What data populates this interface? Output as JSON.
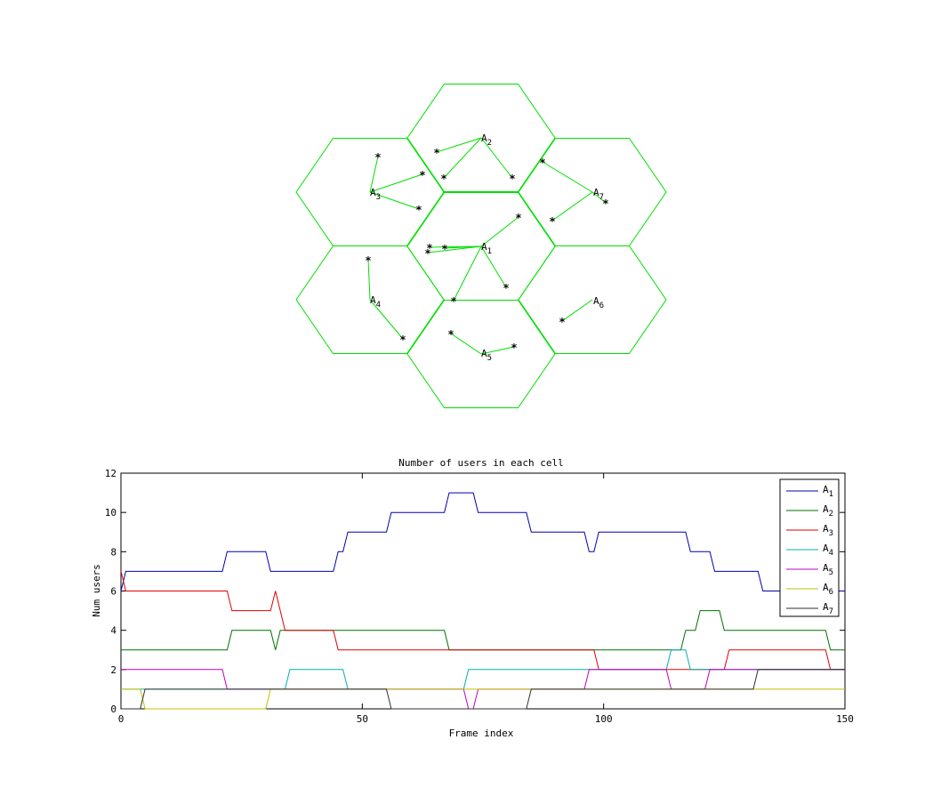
{
  "hex_map": {
    "cell_color": "#00e000",
    "cells": [
      {
        "id": "A1",
        "base": "A",
        "sub": "1"
      },
      {
        "id": "A2",
        "base": "A",
        "sub": "2"
      },
      {
        "id": "A3",
        "base": "A",
        "sub": "3"
      },
      {
        "id": "A4",
        "base": "A",
        "sub": "4"
      },
      {
        "id": "A5",
        "base": "A",
        "sub": "5"
      },
      {
        "id": "A6",
        "base": "A",
        "sub": "6"
      },
      {
        "id": "A7",
        "base": "A",
        "sub": "7"
      }
    ],
    "user_marker": "*"
  },
  "chart_data": {
    "type": "line",
    "title": "Number of users in each cell",
    "xlabel": "Frame index",
    "ylabel": "Num users",
    "xlim": [
      0,
      150
    ],
    "ylim": [
      0,
      12
    ],
    "xticks": [
      0,
      50,
      100,
      150
    ],
    "yticks": [
      0,
      2,
      4,
      6,
      8,
      10,
      12
    ],
    "grid": false,
    "legend_position": "top-right",
    "series": [
      {
        "name": "A1",
        "base": "A",
        "sub": "1",
        "color": "#0000b0",
        "points": [
          [
            0,
            6
          ],
          [
            1,
            7
          ],
          [
            21,
            7
          ],
          [
            22,
            8
          ],
          [
            30,
            8
          ],
          [
            31,
            7
          ],
          [
            44,
            7
          ],
          [
            45,
            8
          ],
          [
            46,
            8
          ],
          [
            47,
            9
          ],
          [
            55,
            9
          ],
          [
            56,
            10
          ],
          [
            67,
            10
          ],
          [
            68,
            11
          ],
          [
            73,
            11
          ],
          [
            74,
            10
          ],
          [
            84,
            10
          ],
          [
            85,
            9
          ],
          [
            96,
            9
          ],
          [
            97,
            8
          ],
          [
            98,
            8
          ],
          [
            99,
            9
          ],
          [
            117,
            9
          ],
          [
            118,
            8
          ],
          [
            122,
            8
          ],
          [
            123,
            7
          ],
          [
            132,
            7
          ],
          [
            133,
            6
          ],
          [
            150,
            6
          ]
        ]
      },
      {
        "name": "A2",
        "base": "A",
        "sub": "2",
        "color": "#007000",
        "points": [
          [
            0,
            3
          ],
          [
            22,
            3
          ],
          [
            23,
            4
          ],
          [
            31,
            4
          ],
          [
            32,
            3
          ],
          [
            33,
            4
          ],
          [
            67,
            4
          ],
          [
            68,
            3
          ],
          [
            116,
            3
          ],
          [
            117,
            4
          ],
          [
            119,
            4
          ],
          [
            120,
            5
          ],
          [
            124,
            5
          ],
          [
            125,
            4
          ],
          [
            146,
            4
          ],
          [
            147,
            3
          ],
          [
            150,
            3
          ]
        ]
      },
      {
        "name": "A3",
        "base": "A",
        "sub": "3",
        "color": "#e00000",
        "points": [
          [
            0,
            7
          ],
          [
            1,
            6
          ],
          [
            22,
            6
          ],
          [
            23,
            5
          ],
          [
            31,
            5
          ],
          [
            32,
            6
          ],
          [
            33,
            5
          ],
          [
            34,
            4
          ],
          [
            44,
            4
          ],
          [
            45,
            3
          ],
          [
            98,
            3
          ],
          [
            99,
            2
          ],
          [
            125,
            2
          ],
          [
            126,
            3
          ],
          [
            146,
            3
          ],
          [
            147,
            2
          ],
          [
            150,
            2
          ]
        ]
      },
      {
        "name": "A4",
        "base": "A",
        "sub": "4",
        "color": "#00b0b0",
        "points": [
          [
            0,
            1
          ],
          [
            34,
            1
          ],
          [
            35,
            2
          ],
          [
            46,
            2
          ],
          [
            47,
            1
          ],
          [
            71,
            1
          ],
          [
            72,
            2
          ],
          [
            113,
            2
          ],
          [
            114,
            3
          ],
          [
            117,
            3
          ],
          [
            118,
            2
          ],
          [
            150,
            2
          ]
        ]
      },
      {
        "name": "A5",
        "base": "A",
        "sub": "5",
        "color": "#c000c0",
        "points": [
          [
            0,
            2
          ],
          [
            21,
            2
          ],
          [
            22,
            1
          ],
          [
            71,
            1
          ],
          [
            72,
            0
          ],
          [
            73,
            0
          ],
          [
            74,
            1
          ],
          [
            96,
            1
          ],
          [
            97,
            2
          ],
          [
            113,
            2
          ],
          [
            114,
            1
          ],
          [
            121,
            1
          ],
          [
            122,
            2
          ],
          [
            150,
            2
          ]
        ]
      },
      {
        "name": "A6",
        "base": "A",
        "sub": "6",
        "color": "#c0c000",
        "points": [
          [
            0,
            1
          ],
          [
            4,
            1
          ],
          [
            5,
            0
          ],
          [
            30,
            0
          ],
          [
            31,
            1
          ],
          [
            150,
            1
          ]
        ]
      },
      {
        "name": "A7",
        "base": "A",
        "sub": "7",
        "color": "#303030",
        "points": [
          [
            0,
            0
          ],
          [
            4,
            0
          ],
          [
            5,
            1
          ],
          [
            55,
            1
          ],
          [
            56,
            0
          ],
          [
            84,
            0
          ],
          [
            85,
            1
          ],
          [
            131,
            1
          ],
          [
            132,
            2
          ],
          [
            150,
            2
          ]
        ]
      }
    ]
  }
}
